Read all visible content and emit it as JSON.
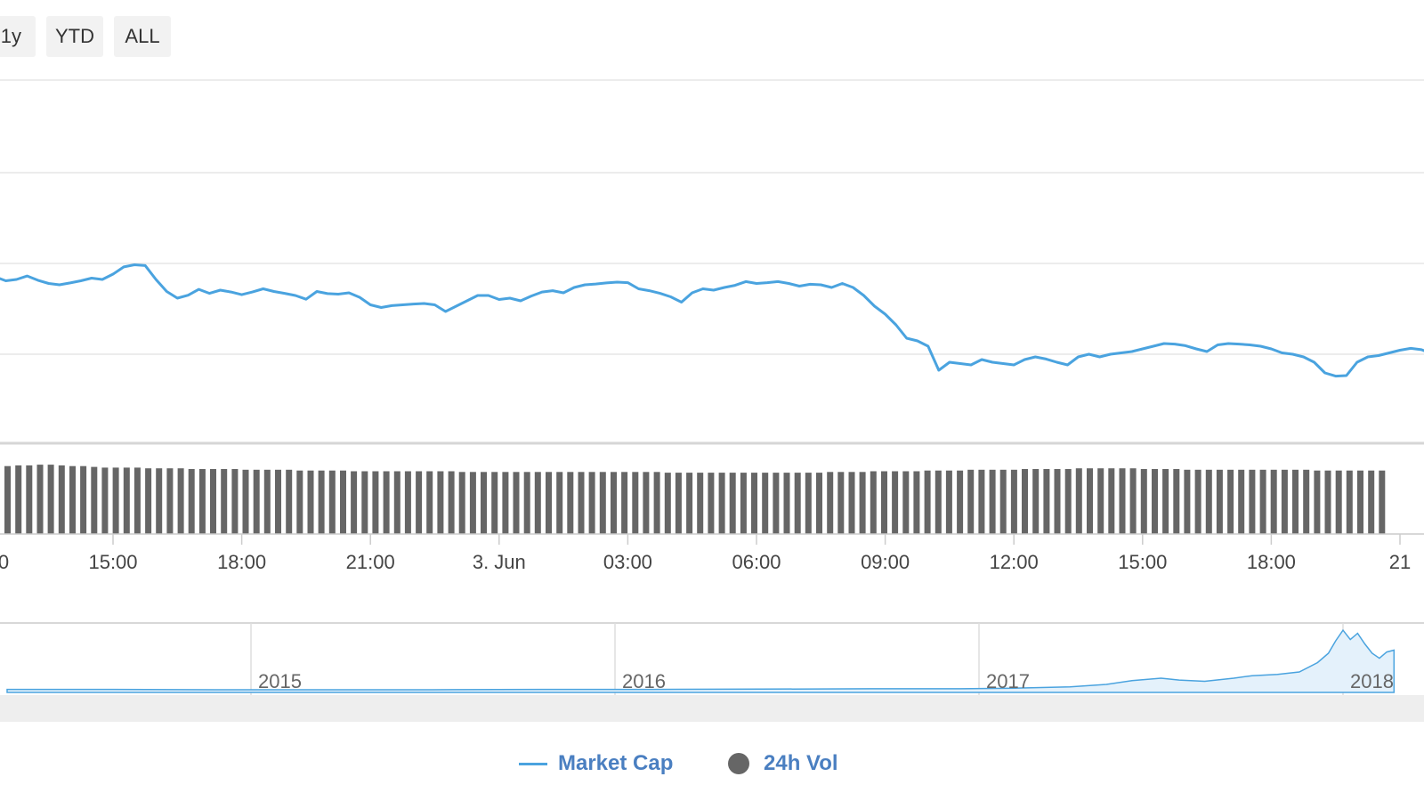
{
  "range_buttons": [
    {
      "label": "1y"
    },
    {
      "label": "YTD"
    },
    {
      "label": "ALL"
    }
  ],
  "colors": {
    "market_cap": "#4aa3df",
    "volume": "#666666",
    "legend_text": "#4a7fc1",
    "grid": "#e6e6e6",
    "navigator_fill": "#e4f1fb",
    "scrollbar": "#eeeeee"
  },
  "legend": [
    {
      "label": "Market Cap",
      "symbol": "line"
    },
    {
      "label": "24h Vol",
      "symbol": "dot"
    }
  ],
  "chart_data": [
    {
      "type": "line",
      "series": [
        {
          "name": "Market Cap",
          "points": [
            [
              11.75,
              0.64
            ],
            [
              12.0,
              0.625
            ],
            [
              12.25,
              0.63
            ],
            [
              12.5,
              0.615
            ],
            [
              12.75,
              0.62
            ],
            [
              13.0,
              0.633
            ],
            [
              13.25,
              0.617
            ],
            [
              13.5,
              0.605
            ],
            [
              13.75,
              0.6
            ],
            [
              14.0,
              0.607
            ],
            [
              14.25,
              0.615
            ],
            [
              14.5,
              0.625
            ],
            [
              14.75,
              0.62
            ],
            [
              15.0,
              0.64
            ],
            [
              15.25,
              0.667
            ],
            [
              15.5,
              0.675
            ],
            [
              15.75,
              0.672
            ],
            [
              16.0,
              0.62
            ],
            [
              16.25,
              0.575
            ],
            [
              16.5,
              0.55
            ],
            [
              16.75,
              0.561
            ],
            [
              17.0,
              0.583
            ],
            [
              17.25,
              0.568
            ],
            [
              17.5,
              0.58
            ],
            [
              17.75,
              0.573
            ],
            [
              18.0,
              0.563
            ],
            [
              18.25,
              0.573
            ],
            [
              18.5,
              0.585
            ],
            [
              18.75,
              0.575
            ],
            [
              19.0,
              0.568
            ],
            [
              19.25,
              0.56
            ],
            [
              19.5,
              0.546
            ],
            [
              19.75,
              0.575
            ],
            [
              20.0,
              0.567
            ],
            [
              20.25,
              0.565
            ],
            [
              20.5,
              0.57
            ],
            [
              20.75,
              0.553
            ],
            [
              21.0,
              0.525
            ],
            [
              21.25,
              0.515
            ],
            [
              21.5,
              0.522
            ],
            [
              21.75,
              0.525
            ],
            [
              22.0,
              0.528
            ],
            [
              22.25,
              0.53
            ],
            [
              22.5,
              0.525
            ],
            [
              22.75,
              0.5
            ],
            [
              23.0,
              0.52
            ],
            [
              23.25,
              0.54
            ],
            [
              23.5,
              0.56
            ],
            [
              23.75,
              0.56
            ],
            [
              24.0,
              0.545
            ],
            [
              24.25,
              0.55
            ],
            [
              24.5,
              0.54
            ],
            [
              24.75,
              0.558
            ],
            [
              25.0,
              0.573
            ],
            [
              25.25,
              0.578
            ],
            [
              25.5,
              0.57
            ],
            [
              25.75,
              0.59
            ],
            [
              26.0,
              0.6
            ],
            [
              26.25,
              0.603
            ],
            [
              26.5,
              0.607
            ],
            [
              26.75,
              0.61
            ],
            [
              27.0,
              0.608
            ],
            [
              27.25,
              0.585
            ],
            [
              27.5,
              0.578
            ],
            [
              27.75,
              0.568
            ],
            [
              28.0,
              0.555
            ],
            [
              28.25,
              0.535
            ],
            [
              28.5,
              0.57
            ],
            [
              28.75,
              0.585
            ],
            [
              29.0,
              0.58
            ],
            [
              29.25,
              0.59
            ],
            [
              29.5,
              0.598
            ],
            [
              29.75,
              0.612
            ],
            [
              30.0,
              0.605
            ],
            [
              30.25,
              0.608
            ],
            [
              30.5,
              0.612
            ],
            [
              30.75,
              0.605
            ],
            [
              31.0,
              0.595
            ],
            [
              31.25,
              0.602
            ],
            [
              31.5,
              0.6
            ],
            [
              31.75,
              0.59
            ],
            [
              32.0,
              0.605
            ],
            [
              32.25,
              0.59
            ],
            [
              32.5,
              0.56
            ],
            [
              32.75,
              0.52
            ],
            [
              33.0,
              0.49
            ],
            [
              33.25,
              0.45
            ],
            [
              33.5,
              0.4
            ],
            [
              33.75,
              0.39
            ],
            [
              34.0,
              0.37
            ],
            [
              34.25,
              0.28
            ],
            [
              34.5,
              0.31
            ],
            [
              34.75,
              0.305
            ],
            [
              35.0,
              0.3
            ],
            [
              35.25,
              0.32
            ],
            [
              35.5,
              0.31
            ],
            [
              35.75,
              0.305
            ],
            [
              36.0,
              0.3
            ],
            [
              36.25,
              0.32
            ],
            [
              36.5,
              0.33
            ],
            [
              36.75,
              0.322
            ],
            [
              37.0,
              0.31
            ],
            [
              37.25,
              0.3
            ],
            [
              37.5,
              0.33
            ],
            [
              37.75,
              0.34
            ],
            [
              38.0,
              0.33
            ],
            [
              38.25,
              0.34
            ],
            [
              38.5,
              0.345
            ],
            [
              38.75,
              0.35
            ],
            [
              39.0,
              0.36
            ],
            [
              39.25,
              0.37
            ],
            [
              39.5,
              0.38
            ],
            [
              39.75,
              0.378
            ],
            [
              40.0,
              0.372
            ],
            [
              40.25,
              0.36
            ],
            [
              40.5,
              0.35
            ],
            [
              40.75,
              0.375
            ],
            [
              41.0,
              0.38
            ],
            [
              41.25,
              0.378
            ],
            [
              41.5,
              0.375
            ],
            [
              41.75,
              0.37
            ],
            [
              42.0,
              0.36
            ],
            [
              42.25,
              0.345
            ],
            [
              42.5,
              0.34
            ],
            [
              42.75,
              0.33
            ],
            [
              43.0,
              0.31
            ],
            [
              43.25,
              0.27
            ],
            [
              43.5,
              0.258
            ],
            [
              43.75,
              0.26
            ],
            [
              44.0,
              0.31
            ],
            [
              44.25,
              0.33
            ],
            [
              44.5,
              0.335
            ],
            [
              44.75,
              0.345
            ],
            [
              45.0,
              0.355
            ],
            [
              45.25,
              0.362
            ],
            [
              45.5,
              0.357
            ],
            [
              45.75,
              0.342
            ],
            [
              46.0,
              0.34
            ]
          ]
        }
      ]
    },
    {
      "type": "bar",
      "series": [
        {
          "name": "24h Vol",
          "values": [
            0.93,
            0.94,
            0.94,
            0.95,
            0.95,
            0.94,
            0.93,
            0.93,
            0.92,
            0.91,
            0.91,
            0.91,
            0.91,
            0.9,
            0.9,
            0.9,
            0.9,
            0.89,
            0.89,
            0.89,
            0.89,
            0.89,
            0.88,
            0.88,
            0.88,
            0.88,
            0.88,
            0.87,
            0.87,
            0.87,
            0.87,
            0.87,
            0.86,
            0.86,
            0.86,
            0.86,
            0.86,
            0.86,
            0.86,
            0.86,
            0.86,
            0.86,
            0.85,
            0.85,
            0.85,
            0.85,
            0.85,
            0.85,
            0.85,
            0.85,
            0.85,
            0.85,
            0.85,
            0.85,
            0.85,
            0.85,
            0.85,
            0.85,
            0.85,
            0.85,
            0.85,
            0.84,
            0.84,
            0.84,
            0.84,
            0.84,
            0.84,
            0.84,
            0.84,
            0.84,
            0.84,
            0.84,
            0.84,
            0.84,
            0.84,
            0.84,
            0.85,
            0.85,
            0.85,
            0.85,
            0.86,
            0.86,
            0.86,
            0.86,
            0.86,
            0.87,
            0.87,
            0.87,
            0.87,
            0.88,
            0.88,
            0.88,
            0.88,
            0.88,
            0.89,
            0.89,
            0.89,
            0.89,
            0.89,
            0.9,
            0.9,
            0.9,
            0.9,
            0.9,
            0.9,
            0.89,
            0.89,
            0.89,
            0.89,
            0.88,
            0.88,
            0.88,
            0.88,
            0.88,
            0.88,
            0.88,
            0.88,
            0.88,
            0.88,
            0.88,
            0.88,
            0.87,
            0.87,
            0.87,
            0.87,
            0.87,
            0.87,
            0.87
          ]
        }
      ]
    },
    {
      "type": "area",
      "series": [
        {
          "name": "Market Cap",
          "points": [
            [
              2014.33,
              0.02
            ],
            [
              2014.6,
              0.02
            ],
            [
              2014.9,
              0.015
            ],
            [
              2015.2,
              0.015
            ],
            [
              2015.5,
              0.015
            ],
            [
              2015.8,
              0.02
            ],
            [
              2016.1,
              0.02
            ],
            [
              2016.4,
              0.025
            ],
            [
              2016.7,
              0.03
            ],
            [
              2016.95,
              0.03
            ],
            [
              2017.1,
              0.04
            ],
            [
              2017.25,
              0.06
            ],
            [
              2017.35,
              0.1
            ],
            [
              2017.42,
              0.16
            ],
            [
              2017.5,
              0.2
            ],
            [
              2017.55,
              0.17
            ],
            [
              2017.62,
              0.15
            ],
            [
              2017.7,
              0.2
            ],
            [
              2017.75,
              0.24
            ],
            [
              2017.82,
              0.26
            ],
            [
              2017.88,
              0.3
            ],
            [
              2017.93,
              0.45
            ],
            [
              2017.96,
              0.6
            ],
            [
              2017.98,
              0.8
            ],
            [
              2018.0,
              0.97
            ],
            [
              2018.02,
              0.82
            ],
            [
              2018.04,
              0.92
            ],
            [
              2018.06,
              0.75
            ],
            [
              2018.08,
              0.6
            ],
            [
              2018.1,
              0.52
            ],
            [
              2018.12,
              0.62
            ],
            [
              2018.14,
              0.65
            ]
          ]
        }
      ],
      "tick_labels": [
        "2015",
        "2016",
        "2017",
        "2018"
      ]
    }
  ],
  "x_axis_labels": [
    "0",
    "15:00",
    "18:00",
    "21:00",
    "3. Jun",
    "03:00",
    "06:00",
    "09:00",
    "12:00",
    "15:00",
    "18:00",
    "21"
  ]
}
